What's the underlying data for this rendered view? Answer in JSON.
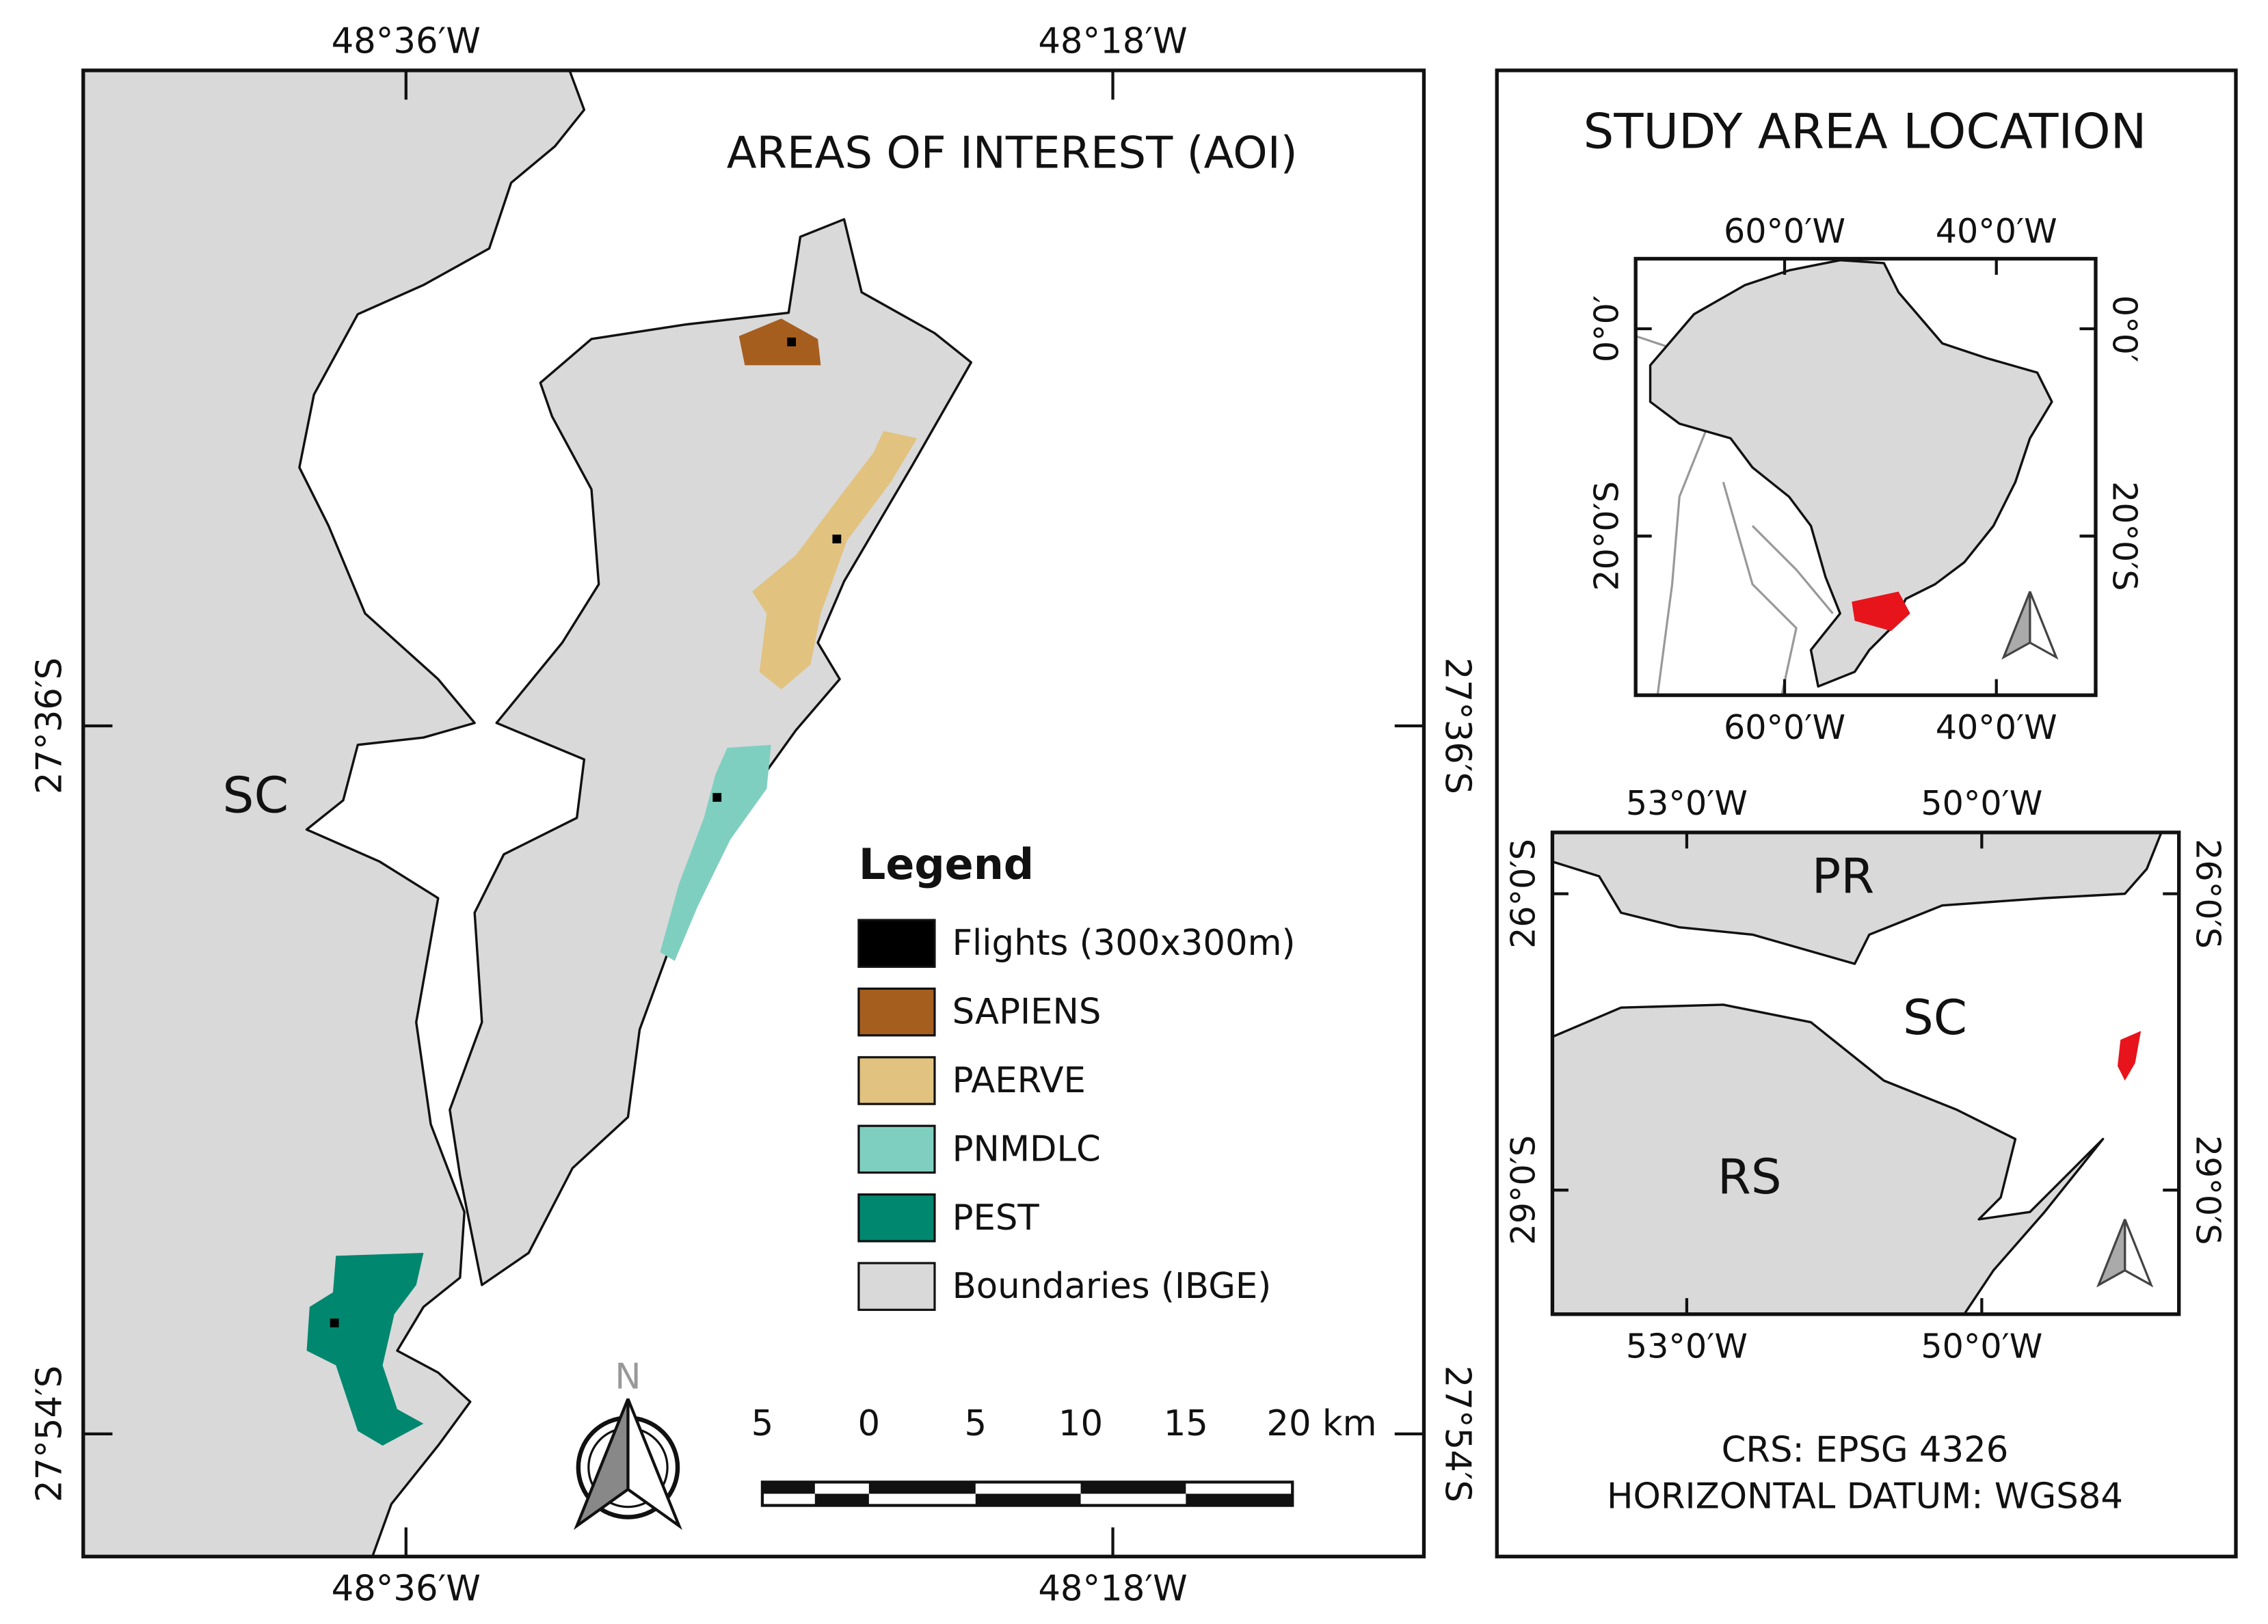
{
  "main_map": {
    "title": "AREAS OF INTEREST (AOI)",
    "top_labels": [
      "48°36′W",
      "48°18′W"
    ],
    "bottom_labels": [
      "48°36′W",
      "48°18′W"
    ],
    "left_labels": [
      "27°36′S",
      "27°54′S"
    ],
    "right_labels": [
      "27°36′S",
      "27°54′S"
    ],
    "place_label": "SC",
    "north_label": "N",
    "legend": {
      "title": "Legend",
      "items": [
        {
          "name": "Flights (300x300m)",
          "color": "#000000"
        },
        {
          "name": "SAPIENS",
          "color": "#a65e1f"
        },
        {
          "name": "PAERVE",
          "color": "#e1c27f"
        },
        {
          "name": "PNMDLC",
          "color": "#7fcfc0"
        },
        {
          "name": "PEST",
          "color": "#00876f"
        },
        {
          "name": "Boundaries (IBGE)",
          "color": "#d9d9d9"
        }
      ]
    },
    "scale_labels": [
      "5",
      "0",
      "5",
      "10",
      "15",
      "20 km"
    ]
  },
  "location": {
    "title": "STUDY AREA LOCATION",
    "brazil_map": {
      "top_labels": [
        "60°0′W",
        "40°0′W"
      ],
      "bottom_labels": [
        "60°0′W",
        "40°0′W"
      ],
      "left_labels": [
        "0°0′",
        "20°0′S"
      ],
      "right_labels": [
        "0°0′",
        "20°0′S"
      ]
    },
    "state_map": {
      "top_labels": [
        "53°0′W",
        "50°0′W"
      ],
      "bottom_labels": [
        "53°0′W",
        "50°0′W"
      ],
      "left_labels": [
        "26°0′S",
        "29°0′S"
      ],
      "right_labels": [
        "26°0′S",
        "29°0′S"
      ],
      "region_labels": [
        "PR",
        "SC",
        "RS"
      ]
    },
    "crs": "CRS: EPSG 4326",
    "datum": "HORIZONTAL DATUM: WGS84"
  }
}
